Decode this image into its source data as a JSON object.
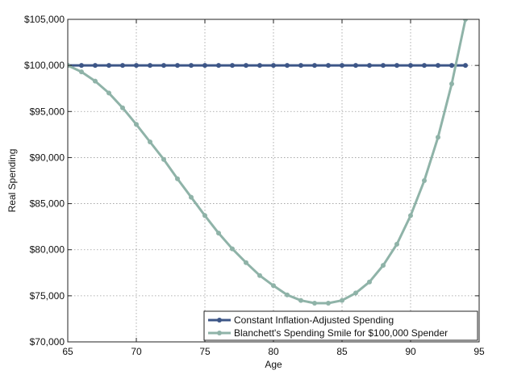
{
  "chart_data": {
    "type": "line",
    "xlabel": "Age",
    "ylabel": "Real Spending",
    "xlim": [
      65,
      95
    ],
    "ylim": [
      70000,
      105000
    ],
    "x_ticks": [
      65,
      70,
      75,
      80,
      85,
      90,
      95
    ],
    "x_tick_labels": [
      "65",
      "70",
      "75",
      "80",
      "85",
      "90",
      "95"
    ],
    "y_ticks": [
      70000,
      75000,
      80000,
      85000,
      90000,
      95000,
      100000,
      105000
    ],
    "y_tick_labels": [
      "$70,000",
      "$75,000",
      "$80,000",
      "$85,000",
      "$90,000",
      "$95,000",
      "$100,000",
      "$105,000"
    ],
    "grid": true,
    "legend_position": "bottom-right",
    "series": [
      {
        "name": "Constant Inflation-Adjusted Spending",
        "color": "#3d5687",
        "x": [
          65,
          66,
          67,
          68,
          69,
          70,
          71,
          72,
          73,
          74,
          75,
          76,
          77,
          78,
          79,
          80,
          81,
          82,
          83,
          84,
          85,
          86,
          87,
          88,
          89,
          90,
          91,
          92,
          93,
          94
        ],
        "values": [
          100000,
          100000,
          100000,
          100000,
          100000,
          100000,
          100000,
          100000,
          100000,
          100000,
          100000,
          100000,
          100000,
          100000,
          100000,
          100000,
          100000,
          100000,
          100000,
          100000,
          100000,
          100000,
          100000,
          100000,
          100000,
          100000,
          100000,
          100000,
          100000,
          100000
        ]
      },
      {
        "name": "Blanchett's Spending Smile for $100,000 Spender",
        "color": "#8fb3a8",
        "x": [
          65,
          66,
          67,
          68,
          69,
          70,
          71,
          72,
          73,
          74,
          75,
          76,
          77,
          78,
          79,
          80,
          81,
          82,
          83,
          84,
          85,
          86,
          87,
          88,
          89,
          90,
          91,
          92,
          93,
          94
        ],
        "values": [
          100000,
          99300,
          98300,
          97000,
          95400,
          93600,
          91700,
          89800,
          87700,
          85700,
          83700,
          81800,
          80100,
          78600,
          77200,
          76100,
          75100,
          74500,
          74200,
          74200,
          74500,
          75300,
          76500,
          78300,
          80600,
          83700,
          87500,
          92200,
          98000,
          105000
        ]
      }
    ]
  }
}
